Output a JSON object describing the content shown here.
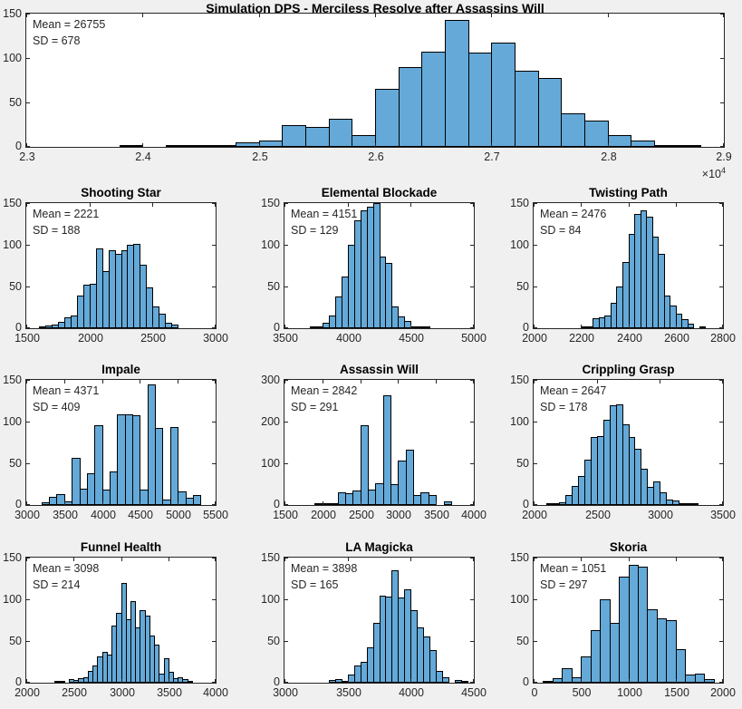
{
  "figure": {
    "kind": "matlab-histogram-figure",
    "colors": {
      "figure_bg": "#f0f0f0",
      "axes_bg": "#ffffff",
      "bar_fill": "#64a9d8",
      "bar_edge": "#000000",
      "axis_color": "#262626",
      "text_color": "#262626",
      "title_color": "#000000"
    }
  },
  "chart_data": [
    {
      "id": "simulation-dps",
      "slot": "main",
      "type": "bar",
      "title": "Simulation DPS - Merciless Resolve after Assassins Will",
      "mean": 26755,
      "sd": 678,
      "mean_label": "Mean = 26755",
      "sd_label": "SD = 678",
      "xlim": [
        23000,
        29000
      ],
      "ylim": [
        0,
        150
      ],
      "xticks": [
        {
          "v": 23000,
          "l": "2.3"
        },
        {
          "v": 24000,
          "l": "2.4"
        },
        {
          "v": 25000,
          "l": "2.5"
        },
        {
          "v": 26000,
          "l": "2.6"
        },
        {
          "v": 27000,
          "l": "2.7"
        },
        {
          "v": 28000,
          "l": "2.8"
        },
        {
          "v": 29000,
          "l": "2.9"
        }
      ],
      "yticks": [
        0,
        50,
        100,
        150
      ],
      "x_exponent": {
        "base": "×10",
        "exp": "4"
      },
      "bin_width": 200,
      "bins": [
        [
          23800,
          1
        ],
        [
          24200,
          1
        ],
        [
          24400,
          1
        ],
        [
          24600,
          2
        ],
        [
          24800,
          5
        ],
        [
          25000,
          7
        ],
        [
          25200,
          25
        ],
        [
          25400,
          22
        ],
        [
          25600,
          32
        ],
        [
          25800,
          13
        ],
        [
          26000,
          65
        ],
        [
          26200,
          90
        ],
        [
          26400,
          107
        ],
        [
          26600,
          143
        ],
        [
          26800,
          106
        ],
        [
          27000,
          117
        ],
        [
          27200,
          86
        ],
        [
          27400,
          78
        ],
        [
          27600,
          38
        ],
        [
          27800,
          30
        ],
        [
          28000,
          13
        ],
        [
          28200,
          7
        ],
        [
          28400,
          1
        ],
        [
          28600,
          1
        ]
      ]
    },
    {
      "id": "shooting-star",
      "slot": "grid",
      "row": 0,
      "col": 0,
      "type": "bar",
      "title": "Shooting Star",
      "mean": 2221,
      "sd": 188,
      "mean_label": "Mean = 2221",
      "sd_label": "SD = 188",
      "xlim": [
        1500,
        3000
      ],
      "ylim": [
        0,
        150
      ],
      "xticks": [
        {
          "v": 1500,
          "l": "1500"
        },
        {
          "v": 2000,
          "l": "2000"
        },
        {
          "v": 2500,
          "l": "2500"
        },
        {
          "v": 3000,
          "l": "3000"
        }
      ],
      "yticks": [
        0,
        50,
        100,
        150
      ],
      "bin_width": 50,
      "bins": [
        [
          1600,
          1
        ],
        [
          1650,
          3
        ],
        [
          1700,
          4
        ],
        [
          1750,
          8
        ],
        [
          1800,
          13
        ],
        [
          1850,
          15
        ],
        [
          1900,
          39
        ],
        [
          1950,
          52
        ],
        [
          2000,
          53
        ],
        [
          2050,
          96
        ],
        [
          2100,
          68
        ],
        [
          2150,
          93
        ],
        [
          2200,
          89
        ],
        [
          2250,
          94
        ],
        [
          2300,
          100
        ],
        [
          2350,
          101
        ],
        [
          2400,
          76
        ],
        [
          2450,
          49
        ],
        [
          2500,
          26
        ],
        [
          2550,
          17
        ],
        [
          2600,
          7
        ],
        [
          2650,
          4
        ]
      ]
    },
    {
      "id": "elemental-blockade",
      "slot": "grid",
      "row": 0,
      "col": 1,
      "type": "bar",
      "title": "Elemental Blockade",
      "mean": 4151,
      "sd": 129,
      "mean_label": "Mean = 4151",
      "sd_label": "SD = 129",
      "xlim": [
        3500,
        5000
      ],
      "ylim": [
        0,
        150
      ],
      "xticks": [
        {
          "v": 3500,
          "l": "3500"
        },
        {
          "v": 4000,
          "l": "4000"
        },
        {
          "v": 4500,
          "l": "4500"
        },
        {
          "v": 5000,
          "l": "5000"
        }
      ],
      "yticks": [
        0,
        50,
        100,
        150
      ],
      "bin_width": 50,
      "bins": [
        [
          3700,
          1
        ],
        [
          3750,
          2
        ],
        [
          3800,
          7
        ],
        [
          3850,
          15
        ],
        [
          3900,
          38
        ],
        [
          3950,
          62
        ],
        [
          4000,
          100
        ],
        [
          4050,
          129
        ],
        [
          4100,
          141
        ],
        [
          4150,
          146
        ],
        [
          4200,
          150
        ],
        [
          4250,
          86
        ],
        [
          4300,
          78
        ],
        [
          4350,
          26
        ],
        [
          4400,
          14
        ],
        [
          4450,
          9
        ],
        [
          4500,
          1
        ],
        [
          4550,
          1
        ],
        [
          4600,
          1
        ]
      ]
    },
    {
      "id": "twisting-path",
      "slot": "grid",
      "row": 0,
      "col": 2,
      "type": "bar",
      "title": "Twisting Path",
      "mean": 2476,
      "sd": 84,
      "mean_label": "Mean = 2476",
      "sd_label": "SD = 84",
      "xlim": [
        2000,
        2800
      ],
      "ylim": [
        0,
        150
      ],
      "xticks": [
        {
          "v": 2000,
          "l": "2000"
        },
        {
          "v": 2200,
          "l": "2200"
        },
        {
          "v": 2400,
          "l": "2400"
        },
        {
          "v": 2600,
          "l": "2600"
        },
        {
          "v": 2800,
          "l": "2800"
        }
      ],
      "yticks": [
        0,
        50,
        100,
        150
      ],
      "bin_width": 25,
      "bins": [
        [
          2200,
          1
        ],
        [
          2225,
          2
        ],
        [
          2250,
          12
        ],
        [
          2275,
          13
        ],
        [
          2300,
          15
        ],
        [
          2325,
          30
        ],
        [
          2350,
          50
        ],
        [
          2375,
          79
        ],
        [
          2400,
          113
        ],
        [
          2425,
          137
        ],
        [
          2450,
          141
        ],
        [
          2475,
          134
        ],
        [
          2500,
          110
        ],
        [
          2525,
          89
        ],
        [
          2550,
          39
        ],
        [
          2575,
          27
        ],
        [
          2600,
          17
        ],
        [
          2625,
          11
        ],
        [
          2650,
          5
        ],
        [
          2700,
          1
        ]
      ]
    },
    {
      "id": "impale",
      "slot": "grid",
      "row": 1,
      "col": 0,
      "type": "bar",
      "title": "Impale",
      "mean": 4371,
      "sd": 409,
      "mean_label": "Mean = 4371",
      "sd_label": "SD = 409",
      "xlim": [
        3000,
        5500
      ],
      "ylim": [
        0,
        150
      ],
      "xticks": [
        {
          "v": 3000,
          "l": "3000"
        },
        {
          "v": 3500,
          "l": "3500"
        },
        {
          "v": 4000,
          "l": "4000"
        },
        {
          "v": 4500,
          "l": "4500"
        },
        {
          "v": 5000,
          "l": "5000"
        },
        {
          "v": 5500,
          "l": "5500"
        }
      ],
      "yticks": [
        0,
        50,
        100,
        150
      ],
      "bin_width": 100,
      "bins": [
        [
          3200,
          3
        ],
        [
          3300,
          10
        ],
        [
          3400,
          13
        ],
        [
          3500,
          4
        ],
        [
          3600,
          56
        ],
        [
          3700,
          20
        ],
        [
          3800,
          38
        ],
        [
          3900,
          96
        ],
        [
          4000,
          18
        ],
        [
          4100,
          40
        ],
        [
          4200,
          109
        ],
        [
          4300,
          109
        ],
        [
          4400,
          108
        ],
        [
          4500,
          18
        ],
        [
          4600,
          145
        ],
        [
          4700,
          92
        ],
        [
          4800,
          7
        ],
        [
          4900,
          94
        ],
        [
          5000,
          16
        ],
        [
          5100,
          9
        ],
        [
          5200,
          12
        ]
      ]
    },
    {
      "id": "assassin-will",
      "slot": "grid",
      "row": 1,
      "col": 1,
      "type": "bar",
      "title": "Assassin Will",
      "mean": 2842,
      "sd": 291,
      "mean_label": "Mean = 2842",
      "sd_label": "SD = 291",
      "xlim": [
        1500,
        4000
      ],
      "ylim": [
        0,
        300
      ],
      "xticks": [
        {
          "v": 1500,
          "l": "1500"
        },
        {
          "v": 2000,
          "l": "2000"
        },
        {
          "v": 2500,
          "l": "2500"
        },
        {
          "v": 3000,
          "l": "3000"
        },
        {
          "v": 3500,
          "l": "3500"
        },
        {
          "v": 4000,
          "l": "4000"
        }
      ],
      "yticks": [
        0,
        100,
        200,
        300
      ],
      "bin_width": 100,
      "bins": [
        [
          1900,
          2
        ],
        [
          2000,
          5
        ],
        [
          2100,
          1
        ],
        [
          2200,
          30
        ],
        [
          2300,
          28
        ],
        [
          2400,
          35
        ],
        [
          2500,
          191
        ],
        [
          2600,
          36
        ],
        [
          2700,
          53
        ],
        [
          2800,
          262
        ],
        [
          2900,
          50
        ],
        [
          3000,
          107
        ],
        [
          3100,
          133
        ],
        [
          3200,
          24
        ],
        [
          3300,
          30
        ],
        [
          3400,
          24
        ],
        [
          3600,
          9
        ]
      ]
    },
    {
      "id": "crippling-grasp",
      "slot": "grid",
      "row": 1,
      "col": 2,
      "type": "bar",
      "title": "Crippling Grasp",
      "mean": 2647,
      "sd": 178,
      "mean_label": "Mean = 2647",
      "sd_label": "SD = 178",
      "xlim": [
        2000,
        3500
      ],
      "ylim": [
        0,
        150
      ],
      "xticks": [
        {
          "v": 2000,
          "l": "2000"
        },
        {
          "v": 2500,
          "l": "2500"
        },
        {
          "v": 3000,
          "l": "3000"
        },
        {
          "v": 3500,
          "l": "3500"
        }
      ],
      "yticks": [
        0,
        50,
        100,
        150
      ],
      "bin_width": 50,
      "bins": [
        [
          2100,
          2
        ],
        [
          2150,
          2
        ],
        [
          2200,
          3
        ],
        [
          2250,
          12
        ],
        [
          2300,
          23
        ],
        [
          2350,
          35
        ],
        [
          2400,
          54
        ],
        [
          2450,
          82
        ],
        [
          2500,
          83
        ],
        [
          2550,
          102
        ],
        [
          2600,
          120
        ],
        [
          2650,
          121
        ],
        [
          2700,
          97
        ],
        [
          2750,
          82
        ],
        [
          2800,
          67
        ],
        [
          2850,
          43
        ],
        [
          2900,
          22
        ],
        [
          2950,
          28
        ],
        [
          3000,
          15
        ],
        [
          3050,
          7
        ],
        [
          3100,
          5
        ],
        [
          3150,
          1
        ],
        [
          3200,
          1
        ],
        [
          3250,
          1
        ]
      ]
    },
    {
      "id": "funnel-health",
      "slot": "grid",
      "row": 2,
      "col": 0,
      "type": "bar",
      "title": "Funnel Health",
      "mean": 3098,
      "sd": 214,
      "mean_label": "Mean = 3098",
      "sd_label": "SD = 214",
      "xlim": [
        2000,
        4000
      ],
      "ylim": [
        0,
        150
      ],
      "xticks": [
        {
          "v": 2000,
          "l": "2000"
        },
        {
          "v": 2500,
          "l": "2500"
        },
        {
          "v": 3000,
          "l": "3000"
        },
        {
          "v": 3500,
          "l": "3500"
        },
        {
          "v": 4000,
          "l": "4000"
        }
      ],
      "yticks": [
        0,
        50,
        100,
        150
      ],
      "bin_width": 50,
      "bins": [
        [
          2300,
          1
        ],
        [
          2350,
          1
        ],
        [
          2450,
          4
        ],
        [
          2500,
          3
        ],
        [
          2550,
          5
        ],
        [
          2600,
          6
        ],
        [
          2650,
          14
        ],
        [
          2700,
          21
        ],
        [
          2750,
          32
        ],
        [
          2800,
          37
        ],
        [
          2850,
          34
        ],
        [
          2900,
          68
        ],
        [
          2950,
          84
        ],
        [
          3000,
          120
        ],
        [
          3050,
          76
        ],
        [
          3100,
          98
        ],
        [
          3150,
          66
        ],
        [
          3200,
          87
        ],
        [
          3250,
          80
        ],
        [
          3300,
          57
        ],
        [
          3350,
          46
        ],
        [
          3400,
          11
        ],
        [
          3450,
          29
        ],
        [
          3500,
          13
        ],
        [
          3550,
          5
        ],
        [
          3600,
          7
        ],
        [
          3650,
          4
        ],
        [
          3700,
          1
        ]
      ]
    },
    {
      "id": "la-magicka",
      "slot": "grid",
      "row": 2,
      "col": 1,
      "type": "bar",
      "title": "LA Magicka",
      "mean": 3898,
      "sd": 165,
      "mean_label": "Mean = 3898",
      "sd_label": "SD = 165",
      "xlim": [
        3000,
        4500
      ],
      "ylim": [
        0,
        150
      ],
      "xticks": [
        {
          "v": 3000,
          "l": "3000"
        },
        {
          "v": 3500,
          "l": "3500"
        },
        {
          "v": 4000,
          "l": "4000"
        },
        {
          "v": 4500,
          "l": "4500"
        }
      ],
      "yticks": [
        0,
        50,
        100,
        150
      ],
      "bin_width": 50,
      "bins": [
        [
          3350,
          3
        ],
        [
          3400,
          4
        ],
        [
          3450,
          1
        ],
        [
          3500,
          10
        ],
        [
          3550,
          21
        ],
        [
          3600,
          25
        ],
        [
          3650,
          42
        ],
        [
          3700,
          72
        ],
        [
          3750,
          104
        ],
        [
          3800,
          103
        ],
        [
          3850,
          135
        ],
        [
          3900,
          102
        ],
        [
          3950,
          112
        ],
        [
          4000,
          87
        ],
        [
          4050,
          66
        ],
        [
          4100,
          55
        ],
        [
          4150,
          39
        ],
        [
          4200,
          14
        ],
        [
          4250,
          6
        ],
        [
          4350,
          3
        ],
        [
          4400,
          2
        ]
      ]
    },
    {
      "id": "skoria",
      "slot": "grid",
      "row": 2,
      "col": 2,
      "type": "bar",
      "title": "Skoria",
      "mean": 1051,
      "sd": 297,
      "mean_label": "Mean = 1051",
      "sd_label": "SD = 297",
      "xlim": [
        0,
        2000
      ],
      "ylim": [
        0,
        150
      ],
      "xticks": [
        {
          "v": 0,
          "l": "0"
        },
        {
          "v": 500,
          "l": "500"
        },
        {
          "v": 1000,
          "l": "1000"
        },
        {
          "v": 1500,
          "l": "1500"
        },
        {
          "v": 2000,
          "l": "2000"
        }
      ],
      "yticks": [
        0,
        50,
        100,
        150
      ],
      "bin_width": 100,
      "bins": [
        [
          100,
          2
        ],
        [
          200,
          5
        ],
        [
          300,
          17
        ],
        [
          400,
          7
        ],
        [
          500,
          31
        ],
        [
          600,
          63
        ],
        [
          700,
          100
        ],
        [
          800,
          72
        ],
        [
          900,
          127
        ],
        [
          1000,
          141
        ],
        [
          1100,
          139
        ],
        [
          1200,
          88
        ],
        [
          1300,
          77
        ],
        [
          1400,
          75
        ],
        [
          1500,
          40
        ],
        [
          1600,
          10
        ],
        [
          1700,
          11
        ],
        [
          1800,
          4
        ]
      ]
    }
  ]
}
